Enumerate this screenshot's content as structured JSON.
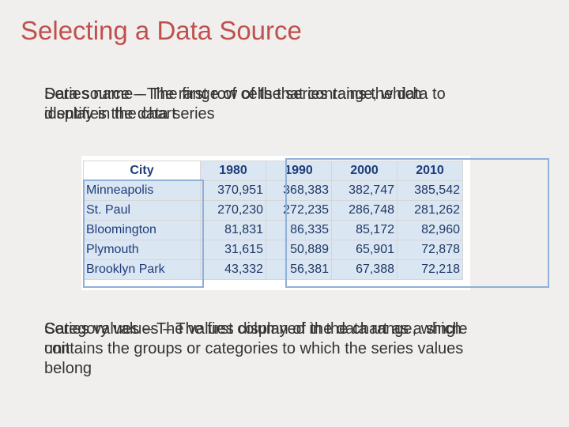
{
  "title": "Selecting a Data Source",
  "para1": {
    "line_a": "Data source – The range of cells that contains the data to display in the chart",
    "line_b": "Series name – The first row of the series range, which identifies the data series"
  },
  "para2": {
    "line_a": "Series values – The values displayed in the chart as a single unit",
    "line_b": "Category values – The first column of the data range, which contains the groups or categories to which the series values belong"
  },
  "table": {
    "header": [
      "City",
      "1980",
      "1990",
      "2000",
      "2010"
    ],
    "rows": [
      [
        "Minneapolis",
        "370,951",
        "368,383",
        "382,747",
        "385,542"
      ],
      [
        "St. Paul",
        "270,230",
        "272,235",
        "286,748",
        "281,262"
      ],
      [
        "Bloomington",
        "81,831",
        "86,335",
        "85,172",
        "82,960"
      ],
      [
        "Plymouth",
        "31,615",
        "50,889",
        "65,901",
        "72,878"
      ],
      [
        "Brooklyn Park",
        "43,332",
        "56,381",
        "67,388",
        "72,218"
      ]
    ]
  },
  "colors": {
    "title": "#c0504d",
    "cell_fill": "#dbe6f3",
    "selection_border": "#8fb0d9"
  }
}
